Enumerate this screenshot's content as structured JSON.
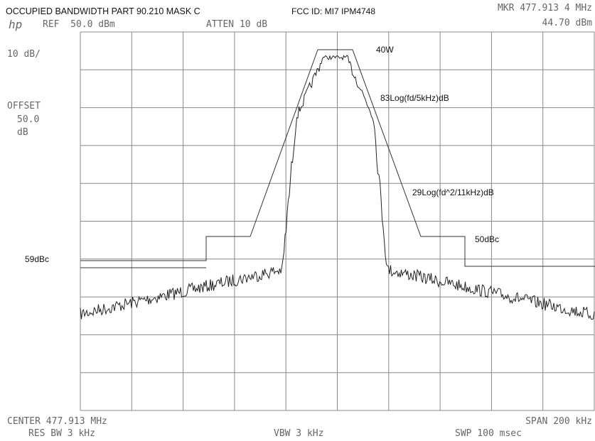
{
  "header": {
    "title": "OCCUPIED BANDWIDTH PART 90.210 MASK C",
    "fcc_id": "FCC ID: MI7 IPM4748",
    "marker_freq": "MKR 477.913 4 MHz",
    "marker_level": "44.70 dBm",
    "logo": "hp",
    "ref": "REF  50.0 dBm",
    "atten": "ATTEN 10 dB"
  },
  "left_panel": {
    "scale": "10 dB/",
    "offset_label": "OFFSET",
    "offset_value": "50.0",
    "offset_unit": "dB"
  },
  "annotations": {
    "power": "40W",
    "slope_inner": "83Log(fd/5kHz)dB",
    "slope_outer": "29Log(fd^2/11kHz)dB",
    "right_floor": "50dBc",
    "left_floor": "59dBc"
  },
  "footer": {
    "center": "CENTER 477.913 MHz",
    "span": "SPAN 200 kHz",
    "res_bw": "RES BW 3 kHz",
    "vbw": "VBW 3 kHz",
    "sweep": "SWP 100 msec"
  }
}
